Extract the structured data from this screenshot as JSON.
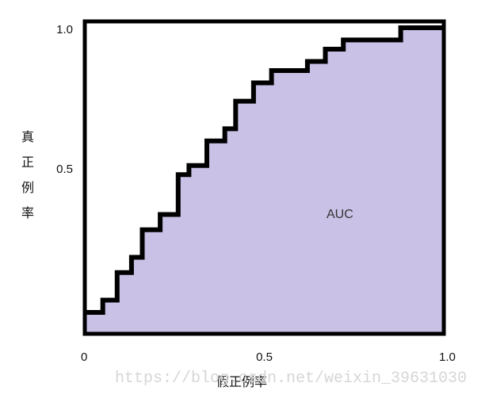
{
  "chart_data": {
    "type": "area",
    "title": "",
    "xlabel": "假正例率",
    "ylabel": "真正例率",
    "xlim": [
      0,
      1
    ],
    "ylim": [
      0,
      1
    ],
    "x_ticks": [
      "0",
      "0.5",
      "1.0"
    ],
    "y_ticks": [
      "0.5",
      "1.0"
    ],
    "annotation": "AUC",
    "fill_color": "#c9c1e6",
    "line_color": "#000000",
    "series": [
      {
        "x": [
          0,
          0.05,
          0.05,
          0.09,
          0.09,
          0.13,
          0.13,
          0.16,
          0.16,
          0.21,
          0.21,
          0.26,
          0.26,
          0.29,
          0.29,
          0.34,
          0.34,
          0.39,
          0.39,
          0.42,
          0.42,
          0.47,
          0.47,
          0.52,
          0.52,
          0.62,
          0.62,
          0.67,
          0.67,
          0.72,
          0.72,
          0.88,
          0.88,
          1.0
        ],
        "y": [
          0.07,
          0.07,
          0.11,
          0.11,
          0.2,
          0.2,
          0.25,
          0.25,
          0.34,
          0.34,
          0.39,
          0.39,
          0.52,
          0.52,
          0.55,
          0.55,
          0.63,
          0.63,
          0.67,
          0.67,
          0.76,
          0.76,
          0.82,
          0.82,
          0.86,
          0.86,
          0.89,
          0.89,
          0.93,
          0.93,
          0.96,
          0.96,
          1.0,
          1.0
        ]
      }
    ]
  },
  "watermark": "https://blog.csdn.net/weixin_39631030"
}
